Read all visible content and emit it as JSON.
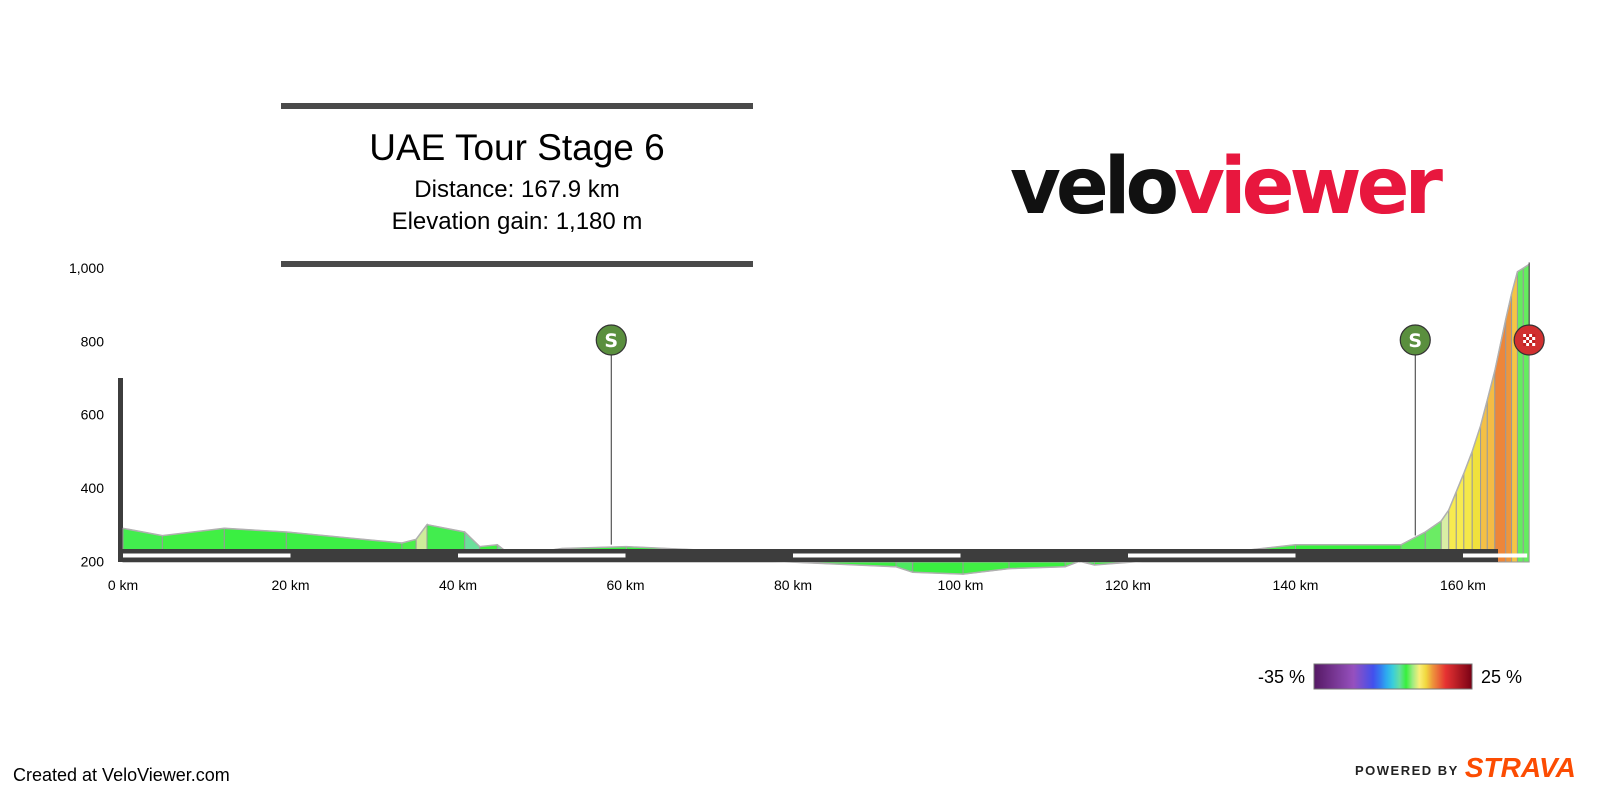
{
  "header": {
    "title": "UAE Tour Stage 6",
    "distance_text": "Distance: 167.9 km",
    "elevation_text": "Elevation gain: 1,180 m"
  },
  "logo": {
    "part1": "velo",
    "part2": "viewer",
    "colors": {
      "part1": "#111111",
      "part2": "#e8173e"
    }
  },
  "footer": {
    "created_text": "Created at VeloViewer.com",
    "powered_text": "POWERED BY",
    "brand_text": "STRAVA",
    "brand_color": "#fc4c02"
  },
  "colors": {
    "axis": "#3d3d3d",
    "sprint_marker": "#5a8f3e",
    "finish_marker": "#d13030"
  },
  "chart_data": {
    "type": "area",
    "title": "UAE Tour Stage 6",
    "xlabel": "",
    "ylabel": "",
    "x_unit": "km",
    "xlim": [
      0,
      167.9
    ],
    "ylim": [
      100,
      1000
    ],
    "x_ticks": [
      0,
      20,
      40,
      60,
      80,
      100,
      120,
      140,
      160
    ],
    "x_tick_labels": [
      "0 km",
      "20 km",
      "40 km",
      "60 km",
      "80 km",
      "100 km",
      "120 km",
      "140 km",
      "160 km"
    ],
    "y_ticks": [
      200,
      400,
      600,
      800,
      1000
    ],
    "y_tick_labels": [
      "200",
      "400",
      "600",
      "800",
      "1,000"
    ],
    "grid": false,
    "profile_km": [
      0,
      4.7,
      12.1,
      19.5,
      33.3,
      35.0,
      36.3,
      40.8,
      42.6,
      44.7,
      46.4,
      49.0,
      50.9,
      52.4,
      60.1,
      69.7,
      70.4,
      72.8,
      92.3,
      94.3,
      100.3,
      105.8,
      112.5,
      114.2,
      116.0,
      124.4,
      140.0,
      152.6,
      155.5,
      157.4,
      158.3,
      159.2,
      160.1,
      161.1,
      162.1,
      162.9,
      163.8,
      165.1,
      165.8,
      166.5,
      167.2,
      167.9
    ],
    "profile_elev": [
      290,
      270,
      290,
      280,
      250,
      260,
      300,
      280,
      240,
      245,
      215,
      210,
      230,
      235,
      240,
      230,
      215,
      205,
      185,
      170,
      165,
      180,
      185,
      200,
      190,
      205,
      245,
      245,
      280,
      310,
      340,
      390,
      440,
      500,
      570,
      640,
      720,
      860,
      930,
      990,
      1000,
      1010
    ],
    "segment_gradient_pct": [
      -0.4,
      0.3,
      -0.1,
      -0.2,
      0.6,
      3.1,
      -0.4,
      -2.2,
      0.2,
      -1.8,
      -0.2,
      1.1,
      0.3,
      0.1,
      -0.1,
      -2.1,
      -0.4,
      -0.1,
      -0.8,
      -0.1,
      0.3,
      0.1,
      0.9,
      -0.6,
      0.2,
      0.3,
      0.0,
      1.2,
      1.6,
      3.3,
      5.6,
      5.6,
      6.0,
      7.0,
      8.8,
      8.9,
      10.8,
      10.0,
      8.6,
      1.4,
      1.4
    ],
    "markers": [
      {
        "type": "sprint",
        "symbol": "S",
        "km": 58.3,
        "elev": 240
      },
      {
        "type": "sprint",
        "symbol": "S",
        "km": 154.3,
        "elev": 265
      },
      {
        "type": "finish",
        "symbol": "",
        "km": 167.9,
        "elev": 1010
      }
    ],
    "color_scale": {
      "min_label": "-35 %",
      "max_label": "25 %",
      "min": -35,
      "max": 25
    }
  }
}
